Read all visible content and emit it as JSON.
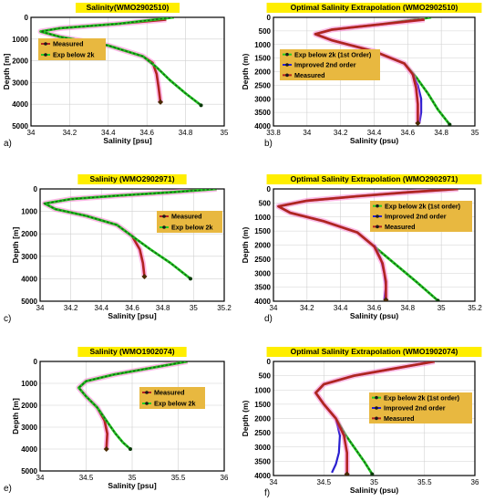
{
  "colors": {
    "measured": "#b22222",
    "measured_glow": "#ff66cc",
    "exp": "#22cc22",
    "exp_dots": "#1a5a1a",
    "improved": "#2a20d0",
    "title_bg": "#ffee00",
    "legend_bg": "#e8b840",
    "frame": "#000000"
  },
  "chart_data": [
    {
      "type": "line",
      "panel_label": "a)",
      "title": "Salinity(WMO2902510)",
      "xlabel": "Salinity [psu]",
      "ylabel": "Depth [m]",
      "xlim": [
        34,
        35
      ],
      "ylim": [
        0,
        5000
      ],
      "y_inverted": true,
      "xticks": [
        "34",
        "34.2",
        "34.4",
        "34.6",
        "34.8",
        "35"
      ],
      "yticks": [
        "0",
        "1000",
        "2000",
        "3000",
        "4000",
        "5000"
      ],
      "grid": true,
      "legend": [
        "Measured",
        "Exp below 2k"
      ],
      "series": [
        {
          "key": "measured",
          "x": [
            34.7,
            34.45,
            34.15,
            34.05,
            34.15,
            34.4,
            34.58,
            34.63,
            34.65,
            34.66,
            34.67
          ],
          "y": [
            100,
            300,
            500,
            650,
            900,
            1300,
            1800,
            2100,
            2600,
            3200,
            3900
          ]
        },
        {
          "key": "exp",
          "x": [
            34.74,
            34.45,
            34.15,
            34.05,
            34.15,
            34.4,
            34.58,
            34.65,
            34.72,
            34.8,
            34.88
          ],
          "y": [
            0,
            300,
            500,
            650,
            900,
            1300,
            1800,
            2300,
            2900,
            3500,
            4050
          ]
        }
      ]
    },
    {
      "type": "line",
      "panel_label": "b)",
      "title": "Optimal Salinity Extrapolation (WMO2902510)",
      "xlabel": "Salinity (psu)",
      "ylabel": "Depth (m)",
      "xlim": [
        33.8,
        35
      ],
      "ylim": [
        0,
        4000
      ],
      "y_inverted": true,
      "xticks": [
        "33.8",
        "34",
        "34.2",
        "34.4",
        "34.6",
        "34.8",
        "35"
      ],
      "yticks": [
        "0",
        "500",
        "1000",
        "1500",
        "2000",
        "2500",
        "3000",
        "3500",
        "4000"
      ],
      "grid": true,
      "legend": [
        "Exp below 2k (1st Order)",
        "Improved 2nd order",
        "Measured"
      ],
      "series": [
        {
          "key": "exp",
          "x": [
            34.74,
            34.45,
            34.15,
            34.05,
            34.15,
            34.4,
            34.58,
            34.65,
            34.72,
            34.78,
            34.85
          ],
          "y": [
            0,
            250,
            450,
            620,
            850,
            1250,
            1700,
            2200,
            2800,
            3400,
            3950
          ]
        },
        {
          "key": "improved",
          "x": [
            34.62,
            34.66,
            34.68,
            34.68,
            34.67
          ],
          "y": [
            2000,
            2500,
            3000,
            3500,
            3900
          ]
        },
        {
          "key": "measured",
          "x": [
            34.7,
            34.45,
            34.15,
            34.05,
            34.15,
            34.4,
            34.58,
            34.63,
            34.65,
            34.66,
            34.66
          ],
          "y": [
            80,
            250,
            450,
            620,
            850,
            1250,
            1700,
            2100,
            2600,
            3200,
            3900
          ]
        }
      ]
    },
    {
      "type": "line",
      "panel_label": "c)",
      "title": "Salinity (WMO2902971)",
      "xlabel": "Salinity [psu]",
      "ylabel": "Depth [m]",
      "xlim": [
        34,
        35.2
      ],
      "ylim": [
        0,
        5000
      ],
      "y_inverted": true,
      "xticks": [
        "34",
        "34.2",
        "34.4",
        "34.6",
        "34.8",
        "35",
        "35.2"
      ],
      "yticks": [
        "0",
        "1000",
        "2000",
        "3000",
        "4000",
        "5000"
      ],
      "grid": true,
      "legend": [
        "Measured",
        "Exp below 2k"
      ],
      "series": [
        {
          "key": "measured",
          "x": [
            35.15,
            34.85,
            34.5,
            34.2,
            34.03,
            34.1,
            34.3,
            34.5,
            34.6,
            34.65,
            34.67,
            34.68
          ],
          "y": [
            0,
            150,
            300,
            450,
            650,
            900,
            1200,
            1600,
            2100,
            2700,
            3300,
            3900
          ]
        },
        {
          "key": "exp",
          "x": [
            35.15,
            34.85,
            34.5,
            34.2,
            34.03,
            34.1,
            34.3,
            34.5,
            34.6,
            34.72,
            34.85,
            34.98
          ],
          "y": [
            0,
            150,
            300,
            450,
            650,
            900,
            1200,
            1600,
            2100,
            2700,
            3300,
            4000
          ]
        }
      ]
    },
    {
      "type": "line",
      "panel_label": "d)",
      "title": "Optimal Salinity Extrapolation (WMO2902971)",
      "xlabel": "Salinity (psu)",
      "ylabel": "Depth (m)",
      "xlim": [
        34,
        35.2
      ],
      "ylim": [
        0,
        4000
      ],
      "y_inverted": true,
      "xticks": [
        "34",
        "34.2",
        "34.4",
        "34.6",
        "34.8",
        "35",
        "35.2"
      ],
      "yticks": [
        "0",
        "500",
        "1000",
        "1500",
        "2000",
        "2500",
        "3000",
        "3500",
        "4000"
      ],
      "grid": true,
      "legend": [
        "Exp below 2k (1st order)",
        "Improved 2nd order",
        "Measured"
      ],
      "series": [
        {
          "key": "exp",
          "x": [
            35.1,
            34.8,
            34.5,
            34.2,
            34.03,
            34.1,
            34.3,
            34.5,
            34.6,
            34.72,
            34.85,
            34.98
          ],
          "y": [
            0,
            120,
            260,
            420,
            620,
            850,
            1150,
            1550,
            2050,
            2650,
            3300,
            3980
          ]
        },
        {
          "key": "improved",
          "x": [
            34.6,
            34.64,
            34.66,
            34.67,
            34.66
          ],
          "y": [
            2000,
            2500,
            3000,
            3500,
            3950
          ]
        },
        {
          "key": "measured",
          "x": [
            35.1,
            34.8,
            34.5,
            34.2,
            34.03,
            34.1,
            34.3,
            34.5,
            34.6,
            34.65,
            34.67,
            34.67
          ],
          "y": [
            0,
            120,
            260,
            420,
            620,
            850,
            1150,
            1550,
            2050,
            2650,
            3300,
            3950
          ]
        }
      ]
    },
    {
      "type": "line",
      "panel_label": "e)",
      "title": "Salinity (WMO1902074)",
      "xlabel": "Salinity [psu]",
      "ylabel": "Depth [m]",
      "xlim": [
        34,
        36
      ],
      "ylim": [
        0,
        5000
      ],
      "y_inverted": true,
      "xticks": [
        "34",
        "34.5",
        "35",
        "35.5",
        "36"
      ],
      "yticks": [
        "0",
        "1000",
        "2000",
        "3000",
        "4000",
        "5000"
      ],
      "grid": true,
      "legend": [
        "Measured",
        "Exp below 2k"
      ],
      "series": [
        {
          "key": "measured",
          "x": [
            35.6,
            35.2,
            34.8,
            34.5,
            34.42,
            34.5,
            34.62,
            34.7,
            34.73,
            34.72
          ],
          "y": [
            0,
            300,
            600,
            900,
            1200,
            1600,
            2100,
            2700,
            3300,
            4000
          ]
        },
        {
          "key": "exp",
          "x": [
            35.6,
            35.2,
            34.8,
            34.5,
            34.42,
            34.5,
            34.62,
            34.72,
            34.82,
            34.9,
            34.98
          ],
          "y": [
            0,
            300,
            600,
            900,
            1200,
            1600,
            2100,
            2700,
            3300,
            3700,
            4000
          ]
        }
      ]
    },
    {
      "type": "line",
      "panel_label": "f)",
      "title": "Optimal Salinity Extrapolation (WMO1902074)",
      "xlabel": "Salinity (psu)",
      "ylabel": "Depth (m)",
      "xlim": [
        34,
        36
      ],
      "ylim": [
        0,
        4000
      ],
      "y_inverted": true,
      "xticks": [
        "34",
        "34.5",
        "35",
        "35.5",
        "36"
      ],
      "yticks": [
        "0",
        "500",
        "1000",
        "1500",
        "2000",
        "2500",
        "3000",
        "3500",
        "4000"
      ],
      "grid": true,
      "legend": [
        "Exp below 2k (1st order)",
        "Improved 2nd order",
        "Measured"
      ],
      "series": [
        {
          "key": "exp",
          "x": [
            35.6,
            35.2,
            34.8,
            34.5,
            34.42,
            34.5,
            34.62,
            34.72,
            34.82,
            34.9,
            34.98
          ],
          "y": [
            0,
            250,
            500,
            800,
            1100,
            1500,
            2000,
            2600,
            3100,
            3500,
            3950
          ]
        },
        {
          "key": "improved",
          "x": [
            34.62,
            34.66,
            34.65,
            34.62,
            34.58
          ],
          "y": [
            2000,
            2600,
            3200,
            3600,
            3900
          ]
        },
        {
          "key": "measured",
          "x": [
            35.6,
            35.2,
            34.8,
            34.5,
            34.42,
            34.5,
            34.62,
            34.7,
            34.73,
            34.73
          ],
          "y": [
            0,
            250,
            500,
            800,
            1100,
            1500,
            2000,
            2600,
            3200,
            3950
          ]
        }
      ]
    }
  ]
}
